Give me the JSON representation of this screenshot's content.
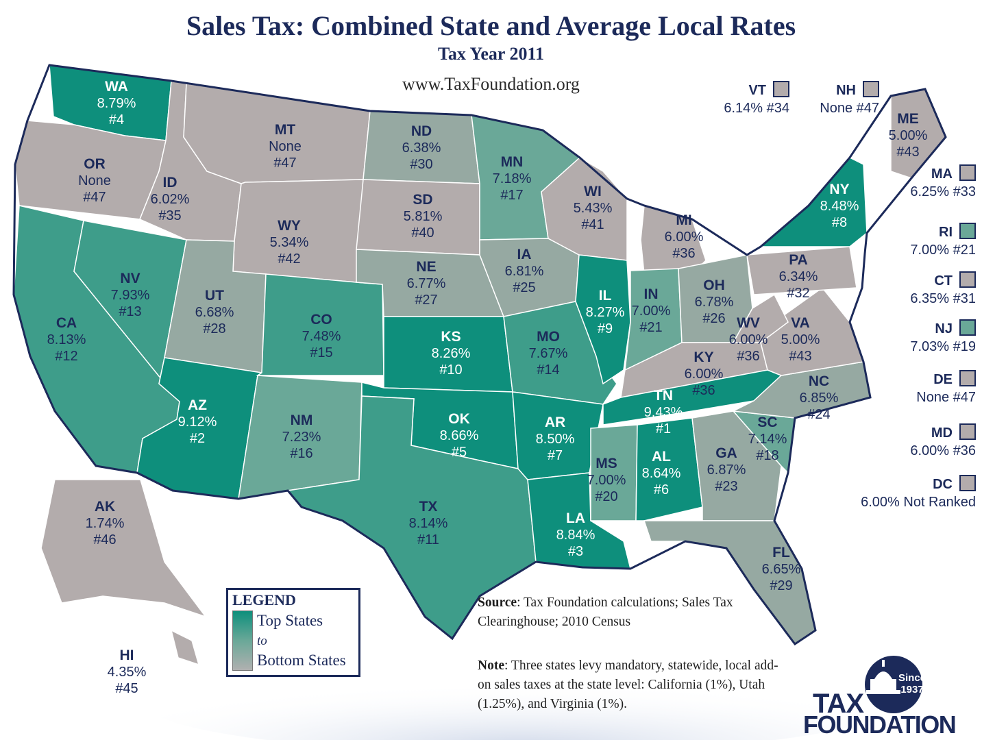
{
  "title": "Sales Tax: Combined State and Average Local Rates",
  "subtitle": "Tax Year 2011",
  "website": "www.TaxFoundation.org",
  "colors": {
    "top": "#0e8f7c",
    "mid_high": "#3e9d8a",
    "mid": "#6aa898",
    "mid_low": "#96a9a2",
    "bottom": "#b3acac",
    "border": "#1c2a5a",
    "text": "#1c2a5a"
  },
  "states": [
    {
      "abbr": "WA",
      "rate": "8.79%",
      "rank": "#4",
      "tier": "top"
    },
    {
      "abbr": "OR",
      "rate": "None",
      "rank": "#47",
      "tier": "bottom"
    },
    {
      "abbr": "CA",
      "rate": "8.13%",
      "rank": "#12",
      "tier": "mid_high"
    },
    {
      "abbr": "NV",
      "rate": "7.93%",
      "rank": "#13",
      "tier": "mid_high"
    },
    {
      "abbr": "ID",
      "rate": "6.02%",
      "rank": "#35",
      "tier": "bottom"
    },
    {
      "abbr": "MT",
      "rate": "None",
      "rank": "#47",
      "tier": "bottom"
    },
    {
      "abbr": "WY",
      "rate": "5.34%",
      "rank": "#42",
      "tier": "bottom"
    },
    {
      "abbr": "UT",
      "rate": "6.68%",
      "rank": "#28",
      "tier": "mid_low"
    },
    {
      "abbr": "AZ",
      "rate": "9.12%",
      "rank": "#2",
      "tier": "top"
    },
    {
      "abbr": "CO",
      "rate": "7.48%",
      "rank": "#15",
      "tier": "mid_high"
    },
    {
      "abbr": "NM",
      "rate": "7.23%",
      "rank": "#16",
      "tier": "mid"
    },
    {
      "abbr": "ND",
      "rate": "6.38%",
      "rank": "#30",
      "tier": "mid_low"
    },
    {
      "abbr": "SD",
      "rate": "5.81%",
      "rank": "#40",
      "tier": "bottom"
    },
    {
      "abbr": "NE",
      "rate": "6.77%",
      "rank": "#27",
      "tier": "mid_low"
    },
    {
      "abbr": "KS",
      "rate": "8.26%",
      "rank": "#10",
      "tier": "top"
    },
    {
      "abbr": "OK",
      "rate": "8.66%",
      "rank": "#5",
      "tier": "top"
    },
    {
      "abbr": "TX",
      "rate": "8.14%",
      "rank": "#11",
      "tier": "mid_high"
    },
    {
      "abbr": "MN",
      "rate": "7.18%",
      "rank": "#17",
      "tier": "mid"
    },
    {
      "abbr": "IA",
      "rate": "6.81%",
      "rank": "#25",
      "tier": "mid_low"
    },
    {
      "abbr": "MO",
      "rate": "7.67%",
      "rank": "#14",
      "tier": "mid_high"
    },
    {
      "abbr": "AR",
      "rate": "8.50%",
      "rank": "#7",
      "tier": "top"
    },
    {
      "abbr": "LA",
      "rate": "8.84%",
      "rank": "#3",
      "tier": "top"
    },
    {
      "abbr": "WI",
      "rate": "5.43%",
      "rank": "#41",
      "tier": "bottom"
    },
    {
      "abbr": "IL",
      "rate": "8.27%",
      "rank": "#9",
      "tier": "top"
    },
    {
      "abbr": "MI",
      "rate": "6.00%",
      "rank": "#36",
      "tier": "bottom"
    },
    {
      "abbr": "IN",
      "rate": "7.00%",
      "rank": "#21",
      "tier": "mid"
    },
    {
      "abbr": "OH",
      "rate": "6.78%",
      "rank": "#26",
      "tier": "mid_low"
    },
    {
      "abbr": "KY",
      "rate": "6.00%",
      "rank": "#36",
      "tier": "bottom"
    },
    {
      "abbr": "TN",
      "rate": "9.43%",
      "rank": "#1",
      "tier": "top"
    },
    {
      "abbr": "MS",
      "rate": "7.00%",
      "rank": "#20",
      "tier": "mid"
    },
    {
      "abbr": "AL",
      "rate": "8.64%",
      "rank": "#6",
      "tier": "top"
    },
    {
      "abbr": "GA",
      "rate": "6.87%",
      "rank": "#23",
      "tier": "mid_low"
    },
    {
      "abbr": "FL",
      "rate": "6.65%",
      "rank": "#29",
      "tier": "mid_low"
    },
    {
      "abbr": "SC",
      "rate": "7.14%",
      "rank": "#18",
      "tier": "mid"
    },
    {
      "abbr": "NC",
      "rate": "6.85%",
      "rank": "#24",
      "tier": "mid_low"
    },
    {
      "abbr": "VA",
      "rate": "5.00%",
      "rank": "#43",
      "tier": "bottom"
    },
    {
      "abbr": "WV",
      "rate": "6.00%",
      "rank": "#36",
      "tier": "bottom"
    },
    {
      "abbr": "PA",
      "rate": "6.34%",
      "rank": "#32",
      "tier": "bottom"
    },
    {
      "abbr": "NY",
      "rate": "8.48%",
      "rank": "#8",
      "tier": "top"
    },
    {
      "abbr": "ME",
      "rate": "5.00%",
      "rank": "#43",
      "tier": "bottom"
    },
    {
      "abbr": "AK",
      "rate": "1.74%",
      "rank": "#46",
      "tier": "bottom"
    },
    {
      "abbr": "HI",
      "rate": "4.35%",
      "rank": "#45",
      "tier": "bottom"
    }
  ],
  "callouts": [
    {
      "abbr": "VT",
      "rate": "6.14%",
      "rank": "#34",
      "tier": "bottom"
    },
    {
      "abbr": "NH",
      "rate": "None",
      "rank": "#47",
      "tier": "bottom"
    },
    {
      "abbr": "MA",
      "rate": "6.25%",
      "rank": "#33",
      "tier": "bottom"
    },
    {
      "abbr": "RI",
      "rate": "7.00%",
      "rank": "#21",
      "tier": "mid"
    },
    {
      "abbr": "CT",
      "rate": "6.35%",
      "rank": "#31",
      "tier": "bottom"
    },
    {
      "abbr": "NJ",
      "rate": "7.03%",
      "rank": "#19",
      "tier": "mid"
    },
    {
      "abbr": "DE",
      "rate": "None",
      "rank": "#47",
      "tier": "bottom"
    },
    {
      "abbr": "MD",
      "rate": "6.00%",
      "rank": "#36",
      "tier": "bottom"
    },
    {
      "abbr": "DC",
      "rate": "6.00%",
      "rank": "Not Ranked",
      "tier": "bottom"
    }
  ],
  "legend": {
    "title": "LEGEND",
    "top": "Top States",
    "to": "to",
    "bottom": "Bottom States"
  },
  "source": {
    "label": "Source",
    "text": ": Tax Foundation calculations; Sales Tax Clearinghouse; 2010 Census"
  },
  "note": {
    "label": "Note",
    "text": ": Three states levy mandatory, statewide, local add-on sales taxes at the state level: California (1%), Utah (1.25%), and Virginia (1%)."
  },
  "logo": {
    "line1": "TAX",
    "line2": "FOUNDATION",
    "since": "Since",
    "year": "1937"
  }
}
